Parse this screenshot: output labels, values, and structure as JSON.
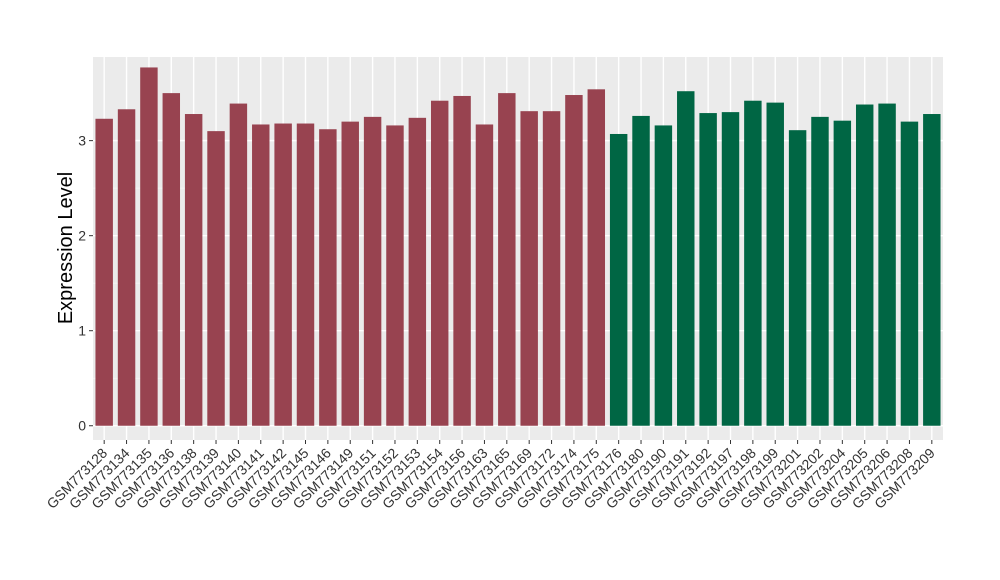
{
  "chart_data": {
    "type": "bar",
    "title": "",
    "xlabel": "",
    "ylabel": "Expression Level",
    "ylim": [
      -0.15,
      3.88
    ],
    "yticks": [
      0,
      1,
      2,
      3
    ],
    "grid": true,
    "background": "#EBEBEB",
    "categories": [
      "GSM773128",
      "GSM773134",
      "GSM773135",
      "GSM773136",
      "GSM773138",
      "GSM773139",
      "GSM773140",
      "GSM773141",
      "GSM773142",
      "GSM773145",
      "GSM773146",
      "GSM773149",
      "GSM773151",
      "GSM773152",
      "GSM773153",
      "GSM773154",
      "GSM773156",
      "GSM773163",
      "GSM773165",
      "GSM773169",
      "GSM773172",
      "GSM773174",
      "GSM773175",
      "GSM773176",
      "GSM773180",
      "GSM773190",
      "GSM773191",
      "GSM773192",
      "GSM773197",
      "GSM773198",
      "GSM773199",
      "GSM773201",
      "GSM773202",
      "GSM773204",
      "GSM773205",
      "GSM773206",
      "GSM773208",
      "GSM773209"
    ],
    "values": [
      3.23,
      3.33,
      3.77,
      3.5,
      3.28,
      3.1,
      3.39,
      3.17,
      3.18,
      3.18,
      3.12,
      3.2,
      3.25,
      3.16,
      3.24,
      3.42,
      3.47,
      3.17,
      3.5,
      3.31,
      3.31,
      3.48,
      3.54,
      3.07,
      3.26,
      3.16,
      3.52,
      3.29,
      3.3,
      3.42,
      3.4,
      3.11,
      3.25,
      3.21,
      3.38,
      3.39,
      3.2,
      3.28
    ],
    "group_colors": [
      "#984350",
      "#006644"
    ],
    "colors_by_index": [
      0,
      0,
      0,
      0,
      0,
      0,
      0,
      0,
      0,
      0,
      0,
      0,
      0,
      0,
      0,
      0,
      0,
      0,
      0,
      0,
      0,
      0,
      0,
      1,
      1,
      1,
      1,
      1,
      1,
      1,
      1,
      1,
      1,
      1,
      1,
      1,
      1,
      1
    ]
  }
}
